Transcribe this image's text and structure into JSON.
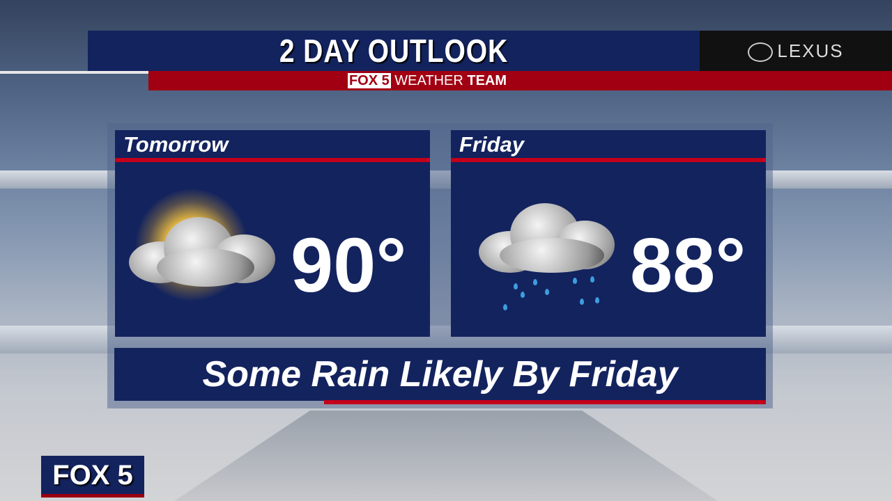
{
  "header": {
    "title": "2 DAY OUTLOOK",
    "sponsor": "LEXUS",
    "team_brand": "FOX 5",
    "team_label": "WEATHER",
    "team_bold": "TEAM"
  },
  "panels": [
    {
      "day": "Tomorrow",
      "temp": "90°",
      "icon": "partly-cloudy-sun-icon"
    },
    {
      "day": "Friday",
      "temp": "88°",
      "icon": "rain-cloud-icon"
    }
  ],
  "footer": {
    "headline": "Some Rain Likely By Friday"
  },
  "station_logo": "FOX 5",
  "colors": {
    "navy": "#13235e",
    "red": "#a10012",
    "accent_red": "#c4001a"
  }
}
